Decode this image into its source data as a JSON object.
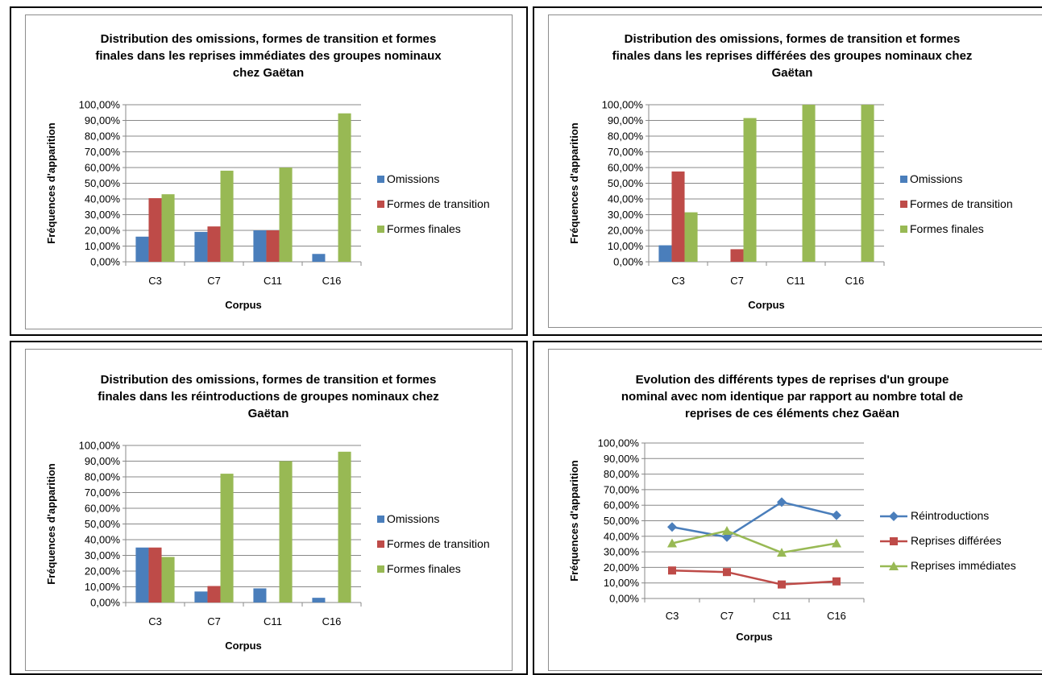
{
  "colors": {
    "omissions": "#4a7ebb",
    "transition": "#be4b48",
    "finales": "#98b954"
  },
  "chart_data": [
    {
      "type": "bar",
      "title_lines": [
        "Distribution des omissions, formes de transition et formes",
        "finales dans les reprises immédiates des groupes nominaux",
        "chez Gaëtan"
      ],
      "xlabel": "Corpus",
      "ylabel": "Fréquences d'apparition",
      "categories": [
        "C3",
        "C7",
        "C11",
        "C16"
      ],
      "yticks": [
        "0,00%",
        "10,00%",
        "20,00%",
        "30,00%",
        "40,00%",
        "50,00%",
        "60,00%",
        "70,00%",
        "80,00%",
        "90,00%",
        "100,00%"
      ],
      "ylim": [
        0,
        100
      ],
      "legend_position": "right",
      "series": [
        {
          "name": "Omissions",
          "color": "#4a7ebb",
          "values": [
            16,
            19,
            20,
            5
          ]
        },
        {
          "name": "Formes de transition",
          "color": "#be4b48",
          "values": [
            40.5,
            22.5,
            20,
            0
          ]
        },
        {
          "name": "Formes finales",
          "color": "#98b954",
          "values": [
            43,
            58,
            60,
            94.5
          ]
        }
      ]
    },
    {
      "type": "bar",
      "title_lines": [
        "Distribution des omissions, formes de transition et formes",
        "finales dans les reprises différées des groupes nominaux chez",
        "Gaëtan"
      ],
      "xlabel": "Corpus",
      "ylabel": "Fréquences d'apparition",
      "categories": [
        "C3",
        "C7",
        "C11",
        "C16"
      ],
      "yticks": [
        "0,00%",
        "10,00%",
        "20,00%",
        "30,00%",
        "40,00%",
        "50,00%",
        "60,00%",
        "70,00%",
        "80,00%",
        "90,00%",
        "100,00%"
      ],
      "ylim": [
        0,
        100
      ],
      "legend_position": "right",
      "series": [
        {
          "name": "Omissions",
          "color": "#4a7ebb",
          "values": [
            10.5,
            0,
            0,
            0
          ]
        },
        {
          "name": "Formes de transition",
          "color": "#be4b48",
          "values": [
            57.5,
            8,
            0,
            0
          ]
        },
        {
          "name": "Formes finales",
          "color": "#98b954",
          "values": [
            31.5,
            91.5,
            100,
            100
          ]
        }
      ]
    },
    {
      "type": "bar",
      "title_lines": [
        "Distribution des omissions, formes de transition et formes",
        "finales dans les réintroductions de groupes nominaux chez",
        "Gaëtan"
      ],
      "xlabel": "Corpus",
      "ylabel": "Fréquences d'apparition",
      "categories": [
        "C3",
        "C7",
        "C11",
        "C16"
      ],
      "yticks": [
        "0,00%",
        "10,00%",
        "20,00%",
        "30,00%",
        "40,00%",
        "50,00%",
        "60,00%",
        "70,00%",
        "80,00%",
        "90,00%",
        "100,00%"
      ],
      "ylim": [
        0,
        100
      ],
      "legend_position": "right",
      "series": [
        {
          "name": "Omissions",
          "color": "#4a7ebb",
          "values": [
            35,
            7,
            9,
            3
          ]
        },
        {
          "name": "Formes de transition",
          "color": "#be4b48",
          "values": [
            35,
            10.5,
            0,
            0
          ]
        },
        {
          "name": "Formes finales",
          "color": "#98b954",
          "values": [
            29,
            82,
            90,
            96
          ]
        }
      ]
    },
    {
      "type": "line",
      "title_lines": [
        "Evolution des différents types de reprises d'un groupe",
        "nominal avec nom identique par rapport au nombre total de",
        "reprises de ces éléments chez Gaëan"
      ],
      "xlabel": "Corpus",
      "ylabel": "Fréquences d'apparition",
      "categories": [
        "C3",
        "C7",
        "C11",
        "C16"
      ],
      "yticks": [
        "0,00%",
        "10,00%",
        "20,00%",
        "30,00%",
        "40,00%",
        "50,00%",
        "60,00%",
        "70,00%",
        "80,00%",
        "90,00%",
        "100,00%"
      ],
      "ylim": [
        0,
        100
      ],
      "legend_position": "right",
      "series": [
        {
          "name": "Réintroductions",
          "color": "#4a7ebb",
          "marker": "diamond",
          "values": [
            46,
            39.5,
            62,
            53.5
          ]
        },
        {
          "name": "Reprises différées",
          "color": "#be4b48",
          "marker": "square",
          "values": [
            18,
            17,
            9,
            11
          ]
        },
        {
          "name": "Reprises immédiates",
          "color": "#98b954",
          "marker": "triangle",
          "values": [
            35.5,
            43.5,
            29.5,
            35.5
          ]
        }
      ]
    }
  ]
}
